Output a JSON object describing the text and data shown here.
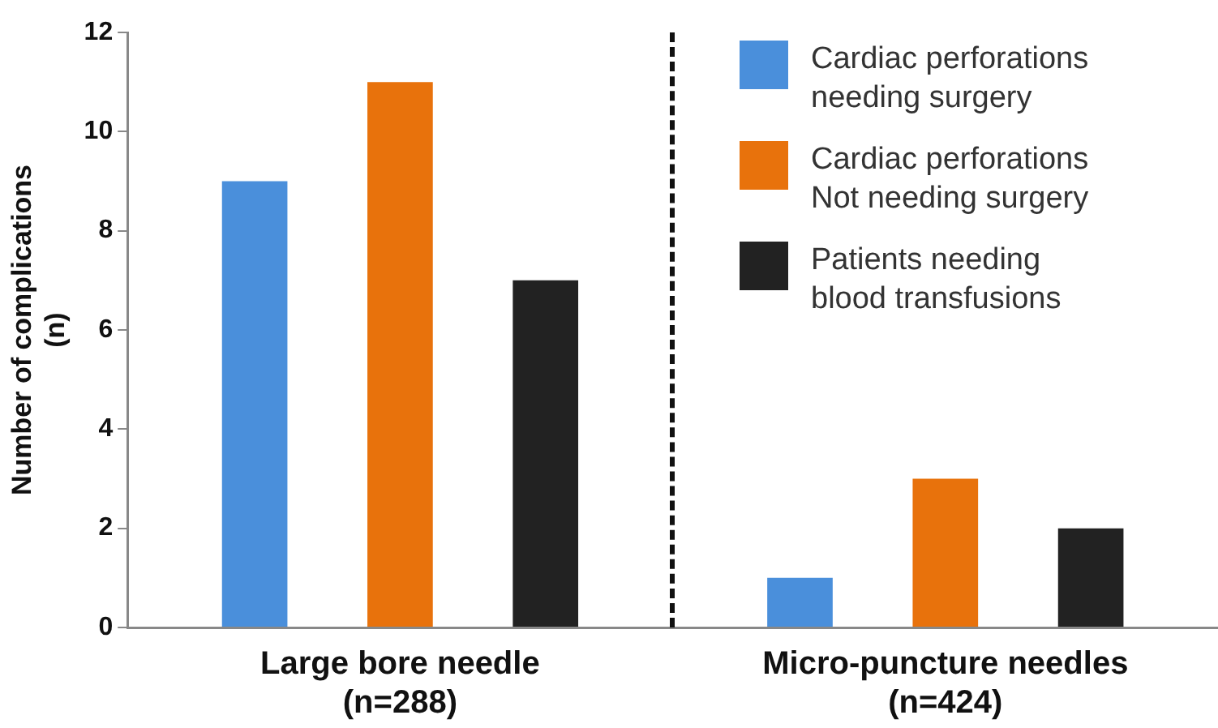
{
  "chart_data": {
    "type": "bar",
    "ylabel": "Number of complications\n(n)",
    "categories": [
      "Large bore needle\n(n=288)",
      "Micro-puncture needles\n(n=424)"
    ],
    "series": [
      {
        "name": "Cardiac perforations\nneeding surgery",
        "color": "#4a8fdb",
        "values": [
          9,
          1
        ]
      },
      {
        "name": "Cardiac perforations\nNot needing surgery",
        "color": "#e8720c",
        "values": [
          11,
          3
        ]
      },
      {
        "name": "Patients needing\nblood transfusions",
        "color": "#222222",
        "values": [
          7,
          2
        ]
      }
    ],
    "ylim": [
      0,
      12
    ],
    "yticks": [
      0,
      2,
      4,
      6,
      8,
      10,
      12
    ],
    "grid": false,
    "legend": "top right"
  }
}
